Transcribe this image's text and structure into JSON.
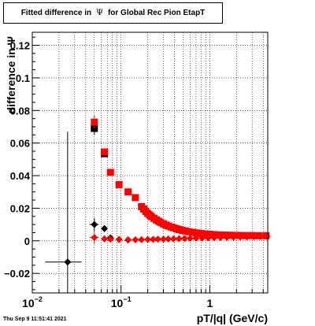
{
  "title": {
    "prefix": "Fitted difference in",
    "symbol": "Ψ",
    "suffix": "for Global Rec Pion EtapT"
  },
  "timestamp": "Thu Sep  9 11:51:41 2021",
  "chart_data": {
    "type": "scatter",
    "xlabel": "pT/|q| (GeV/c)",
    "ylabel": "difference in Ψ",
    "xscale": "log",
    "xlim": [
      0.01,
      4.5
    ],
    "ylim": [
      -0.032,
      0.128
    ],
    "grid": true,
    "xticks": [
      {
        "value": 0.01,
        "base": "10",
        "exp": "−2"
      },
      {
        "value": 0.1,
        "base": "10",
        "exp": "−1"
      },
      {
        "value": 1,
        "base": "1",
        "exp": ""
      }
    ],
    "yticks": [
      {
        "value": -0.02,
        "label": "−0.02"
      },
      {
        "value": 0,
        "label": "0"
      },
      {
        "value": 0.02,
        "label": "0.02"
      },
      {
        "value": 0.04,
        "label": "0.04"
      },
      {
        "value": 0.06,
        "label": "0.06"
      },
      {
        "value": 0.08,
        "label": "0.08"
      },
      {
        "value": 0.1,
        "label": "0.1"
      },
      {
        "value": 0.12,
        "label": "0.12"
      }
    ],
    "series": [
      {
        "marker": "square",
        "color": "#000000",
        "x": [
          0.05,
          0.065
        ],
        "y": [
          0.069,
          0.0535
        ],
        "yerr": [
          0.004,
          0.002
        ]
      },
      {
        "marker": "square",
        "color": "#ff0000",
        "x": [
          0.05,
          0.065,
          0.076,
          0.095,
          0.12,
          0.145,
          0.17,
          0.18,
          0.19,
          0.2,
          0.21,
          0.22,
          0.235,
          0.25,
          0.265,
          0.28,
          0.3,
          0.32,
          0.34,
          0.365,
          0.39,
          0.42,
          0.45,
          0.49,
          0.53,
          0.58,
          0.64,
          0.71,
          0.79,
          0.88,
          0.99,
          1.12,
          1.28,
          1.48,
          1.73,
          2.05,
          2.45,
          2.95,
          3.55,
          4.3
        ],
        "y": [
          0.0728,
          0.0545,
          0.042,
          0.0345,
          0.03,
          0.0265,
          0.021,
          0.0195,
          0.018,
          0.0168,
          0.0158,
          0.0148,
          0.0138,
          0.0128,
          0.012,
          0.0112,
          0.0104,
          0.0097,
          0.0091,
          0.0085,
          0.008,
          0.0074,
          0.0069,
          0.0064,
          0.006,
          0.0056,
          0.0052,
          0.0048,
          0.0045,
          0.0042,
          0.004,
          0.0038,
          0.0036,
          0.0035,
          0.0034,
          0.0033,
          0.0032,
          0.0032,
          0.0031,
          0.0031
        ],
        "yerr": [
          0.004,
          0.002,
          0.001,
          0.001,
          0.0008,
          0.0006,
          0.0005,
          0.0004,
          0.0004,
          0.0003,
          0.0003,
          0.0003,
          0.0003,
          0.0003,
          0.0002,
          0.0002,
          0.0002,
          0.0002,
          0.0002,
          0.0002,
          0.0002,
          0.0002,
          0.0002,
          0.0002,
          0.0002,
          0.0002,
          0.0002,
          0.0002,
          0.0002,
          0.0002,
          0.0002,
          0.0002,
          0.0002,
          0.0002,
          0.0002,
          0.0002,
          0.0002,
          0.0002,
          0.0002,
          0.0002
        ]
      },
      {
        "marker": "diamond",
        "color": "#000000",
        "x": [
          0.025,
          0.05,
          0.065,
          0.076,
          0.095,
          0.12
        ],
        "y": [
          -0.013,
          0.01,
          0.0075,
          0.0018,
          0.0008,
          0.0005
        ],
        "yerr": [
          0.08,
          0.004,
          0.002,
          0.001,
          0.0008,
          0.0006
        ],
        "xerr": [
          0.011,
          0.006,
          0,
          0,
          0,
          0
        ]
      },
      {
        "marker": "diamond",
        "color": "#ff0000",
        "x": [
          0.05,
          0.065,
          0.076,
          0.095,
          0.12,
          0.145,
          0.17,
          0.2,
          0.23,
          0.26,
          0.3,
          0.34,
          0.39,
          0.45,
          0.52,
          0.6,
          0.7,
          0.82,
          0.96,
          1.12,
          1.32,
          1.56,
          1.85,
          2.2,
          2.62,
          3.12,
          3.72,
          4.4
        ],
        "y": [
          0.002,
          0.0012,
          0.001,
          0.0008,
          0.0006,
          0.0006,
          0.0007,
          0.0008,
          0.0009,
          0.001,
          0.001,
          0.0011,
          0.0012,
          0.0013,
          0.0014,
          0.0015,
          0.0016,
          0.0017,
          0.0018,
          0.0019,
          0.002,
          0.0021,
          0.0022,
          0.0023,
          0.0024,
          0.0025,
          0.0026,
          0.0027
        ],
        "yerr": [
          0.004,
          0.002,
          0.001,
          0.001,
          0.0008,
          0.0006,
          0.0005,
          0.0004,
          0.0003,
          0.0003,
          0.0003,
          0.0002,
          0.0002,
          0.0002,
          0.0002,
          0.0002,
          0.0002,
          0.0002,
          0.0002,
          0.0002,
          0.0002,
          0.0002,
          0.0002,
          0.0002,
          0.0002,
          0.0002,
          0.0002,
          0.0002
        ],
        "xerr": [
          0.006,
          0,
          0,
          0,
          0,
          0,
          0,
          0,
          0,
          0,
          0,
          0,
          0,
          0,
          0,
          0,
          0,
          0,
          0,
          0,
          0,
          0,
          0,
          0,
          0,
          0,
          0,
          0
        ]
      }
    ]
  }
}
